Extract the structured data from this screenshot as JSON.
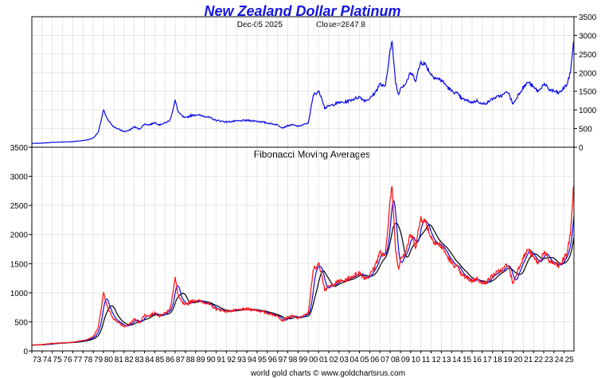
{
  "header": {
    "title": "New Zealand Dollar Platinum",
    "date": "Dec-05  2025",
    "close": "Close=2847.8"
  },
  "footer": {
    "credit": "world gold charts © www.goldchartsrus.com"
  },
  "colors": {
    "title": "#1515e0",
    "price": "#0a0ae6",
    "fast": "#ff1a1a",
    "mid": "#0a0ae6",
    "slow": "#000000"
  },
  "chart_data": [
    {
      "type": "line",
      "title": "New Zealand Dollar Platinum",
      "xlabel": "",
      "ylabel": "",
      "xlim": [
        1973.0,
        2025.95
      ],
      "ylim": [
        0,
        3500
      ],
      "yticks": [
        0,
        500,
        1000,
        1500,
        2000,
        2500,
        3000,
        3500
      ],
      "y_axis_side": "right",
      "grid": true,
      "series": [
        {
          "color": "#0a0ae6",
          "x": [
            1973.0,
            1974.0,
            1975.0,
            1976.0,
            1977.0,
            1978.0,
            1978.5,
            1979.0,
            1979.5,
            1980.0,
            1980.2,
            1980.5,
            1981.0,
            1981.5,
            1982.0,
            1982.5,
            1983.0,
            1983.5,
            1984.0,
            1984.5,
            1985.0,
            1985.5,
            1986.0,
            1986.5,
            1987.0,
            1987.3,
            1987.6,
            1988.0,
            1988.5,
            1989.0,
            1990.0,
            1991.0,
            1992.0,
            1993.0,
            1994.0,
            1995.0,
            1996.0,
            1997.0,
            1997.5,
            1998.0,
            1998.5,
            1999.0,
            1999.5,
            2000.0,
            2000.5,
            2001.0,
            2001.3,
            2001.6,
            2002.0,
            2002.5,
            2003.0,
            2003.5,
            2004.0,
            2004.5,
            2005.0,
            2005.5,
            2006.0,
            2006.5,
            2007.0,
            2007.5,
            2008.0,
            2008.2,
            2008.5,
            2008.8,
            2009.0,
            2009.5,
            2010.0,
            2010.5,
            2011.0,
            2011.5,
            2012.0,
            2012.5,
            2013.0,
            2013.5,
            2014.0,
            2014.5,
            2015.0,
            2015.5,
            2016.0,
            2016.5,
            2017.0,
            2017.5,
            2018.0,
            2018.5,
            2019.0,
            2019.5,
            2020.0,
            2020.3,
            2020.6,
            2021.0,
            2021.5,
            2022.0,
            2022.5,
            2023.0,
            2023.5,
            2024.0,
            2024.5,
            2025.0,
            2025.3,
            2025.6,
            2025.8,
            2025.95
          ],
          "y": [
            100,
            110,
            130,
            140,
            150,
            180,
            200,
            250,
            400,
            1000,
            850,
            700,
            550,
            480,
            420,
            450,
            550,
            480,
            620,
            600,
            660,
            600,
            650,
            720,
            1250,
            950,
            850,
            780,
            850,
            870,
            830,
            720,
            680,
            700,
            720,
            700,
            650,
            600,
            520,
            580,
            600,
            560,
            600,
            650,
            1400,
            1500,
            1350,
            1050,
            1100,
            1150,
            1200,
            1200,
            1250,
            1300,
            1350,
            1250,
            1300,
            1450,
            1700,
            1600,
            2600,
            2800,
            1800,
            1400,
            1600,
            1700,
            2000,
            1800,
            2300,
            2200,
            1950,
            1850,
            1800,
            1650,
            1500,
            1450,
            1300,
            1250,
            1200,
            1250,
            1150,
            1200,
            1300,
            1350,
            1400,
            1500,
            1150,
            1300,
            1450,
            1600,
            1750,
            1600,
            1500,
            1700,
            1550,
            1500,
            1450,
            1600,
            1700,
            2000,
            2550,
            2848
          ]
        }
      ]
    },
    {
      "type": "line",
      "title": "Fibonacci Moving Averages",
      "xlabel": "",
      "ylabel": "",
      "xlim": [
        1973.0,
        2025.95
      ],
      "ylim": [
        0,
        3500
      ],
      "yticks": [
        0,
        500,
        1000,
        1500,
        2000,
        2500,
        3000,
        3500
      ],
      "y_axis_side": "left",
      "grid": true,
      "x_tick_labels": [
        "73",
        "74",
        "75",
        "76",
        "77",
        "78",
        "79",
        "80",
        "81",
        "82",
        "83",
        "84",
        "85",
        "86",
        "87",
        "88",
        "89",
        "90",
        "91",
        "92",
        "93",
        "94",
        "95",
        "96",
        "97",
        "98",
        "99",
        "00",
        "01",
        "02",
        "03",
        "04",
        "05",
        "06",
        "07",
        "08",
        "09",
        "10",
        "11",
        "12",
        "13",
        "14",
        "15",
        "16",
        "17",
        "18",
        "19",
        "20",
        "21",
        "22",
        "23",
        "24",
        "25"
      ],
      "series": [
        {
          "color": "#ff1a1a",
          "smoothing": "fast"
        },
        {
          "color": "#0a0ae6",
          "smoothing": "medium"
        },
        {
          "color": "#000000",
          "smoothing": "slow"
        }
      ]
    }
  ]
}
